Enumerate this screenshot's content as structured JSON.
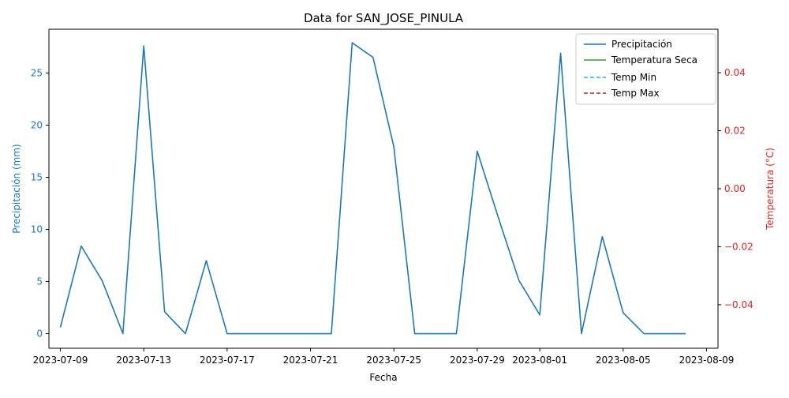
{
  "chart_data": {
    "type": "line",
    "title": "Data for SAN_JOSE_PINULA",
    "xlabel": "Fecha",
    "ylabel_left": "Precipitación (mm)",
    "ylabel_right": "Temperatura (°C)",
    "x_ticks": [
      "2023-07-09",
      "2023-07-13",
      "2023-07-17",
      "2023-07-21",
      "2023-07-25",
      "2023-07-29",
      "2023-08-01",
      "2023-08-05",
      "2023-08-09"
    ],
    "y_left_ticks": [
      0,
      5,
      10,
      15,
      20,
      25
    ],
    "y_right_ticks": [
      "−0.04",
      "−0.02",
      "0.00",
      "0.02",
      "0.04"
    ],
    "y_left_range": [
      -1.4,
      29.2
    ],
    "y_right_range": [
      -0.055,
      0.055
    ],
    "x_range": [
      "2023-07-08",
      "2023-08-09"
    ],
    "grid": false,
    "legend_position": "top-right",
    "colors": {
      "left_axis": "#1f77b4",
      "right_axis": "#d62728",
      "precipitacion": "#1f77b4",
      "temp_seca": "#2ca02c",
      "temp_min": "#17becf",
      "temp_max": "#b22222"
    },
    "series": [
      {
        "name": "Precipitación",
        "axis": "left",
        "style": "solid",
        "x": [
          "2023-07-09",
          "2023-07-10",
          "2023-07-11",
          "2023-07-12",
          "2023-07-13",
          "2023-07-14",
          "2023-07-15",
          "2023-07-16",
          "2023-07-17",
          "2023-07-18",
          "2023-07-19",
          "2023-07-20",
          "2023-07-21",
          "2023-07-22",
          "2023-07-23",
          "2023-07-24",
          "2023-07-25",
          "2023-07-26",
          "2023-07-27",
          "2023-07-28",
          "2023-07-29",
          "2023-07-30",
          "2023-07-31",
          "2023-08-01",
          "2023-08-02",
          "2023-08-03",
          "2023-08-04",
          "2023-08-05",
          "2023-08-06",
          "2023-08-07",
          "2023-08-08"
        ],
        "values": [
          0.6,
          8.4,
          5.1,
          0.0,
          27.6,
          2.1,
          0.0,
          7.0,
          0.0,
          0.0,
          0.0,
          0.0,
          0.0,
          0.0,
          27.9,
          26.5,
          17.9,
          0.0,
          0.0,
          0.0,
          17.5,
          11.2,
          5.1,
          1.8,
          26.9,
          0.0,
          9.3,
          2.0,
          0.0,
          0.0,
          0.0
        ]
      },
      {
        "name": "Temperatura Seca",
        "axis": "right",
        "style": "solid",
        "x": [],
        "values": []
      },
      {
        "name": "Temp Min",
        "axis": "right",
        "style": "dashed",
        "x": [],
        "values": []
      },
      {
        "name": "Temp Max",
        "axis": "right",
        "style": "dashed",
        "x": [],
        "values": []
      }
    ]
  }
}
